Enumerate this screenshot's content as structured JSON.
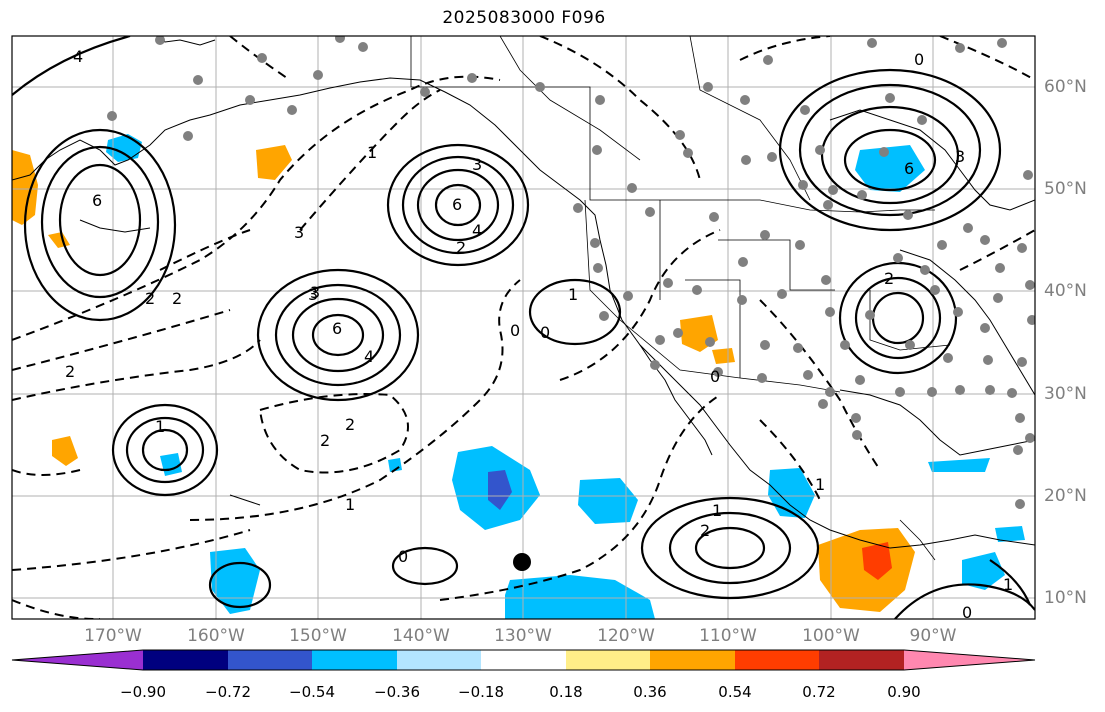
{
  "title": "2025083000 F096",
  "latitude_labels": [
    "60°N",
    "50°N",
    "40°N",
    "30°N",
    "20°N",
    "10°N"
  ],
  "longitude_labels": [
    "170°W",
    "160°W",
    "150°W",
    "140°W",
    "130°W",
    "120°W",
    "110°W",
    "100°W",
    "90°W"
  ],
  "contour_labels": {
    "solid": [
      "4",
      "6",
      "3",
      "4",
      "6",
      "2",
      "3",
      "4",
      "1",
      "6",
      "3",
      "1",
      "2",
      "1",
      "2",
      "1",
      "6"
    ],
    "dashed": [
      "3",
      "3",
      "2",
      "2",
      "0",
      "0",
      "2",
      "1",
      "2",
      "0",
      "1",
      "2",
      "0",
      "1",
      "0",
      "0"
    ]
  },
  "colorbar": {
    "ticks": [
      "−0.90",
      "−0.72",
      "−0.54",
      "−0.36",
      "−0.18",
      "0.18",
      "0.36",
      "0.54",
      "0.72",
      "0.90"
    ],
    "colors": [
      "#9a2fd1",
      "#00007f",
      "#3355cc",
      "#00bfff",
      "#b3e5ff",
      "#ffffff",
      "#ffee88",
      "#ffa500",
      "#ff3d00",
      "#b22222",
      "#ff88b0"
    ]
  },
  "colors": {
    "station_dot": "#808080",
    "contour": "#000000",
    "grid": "#b0b0b0"
  }
}
